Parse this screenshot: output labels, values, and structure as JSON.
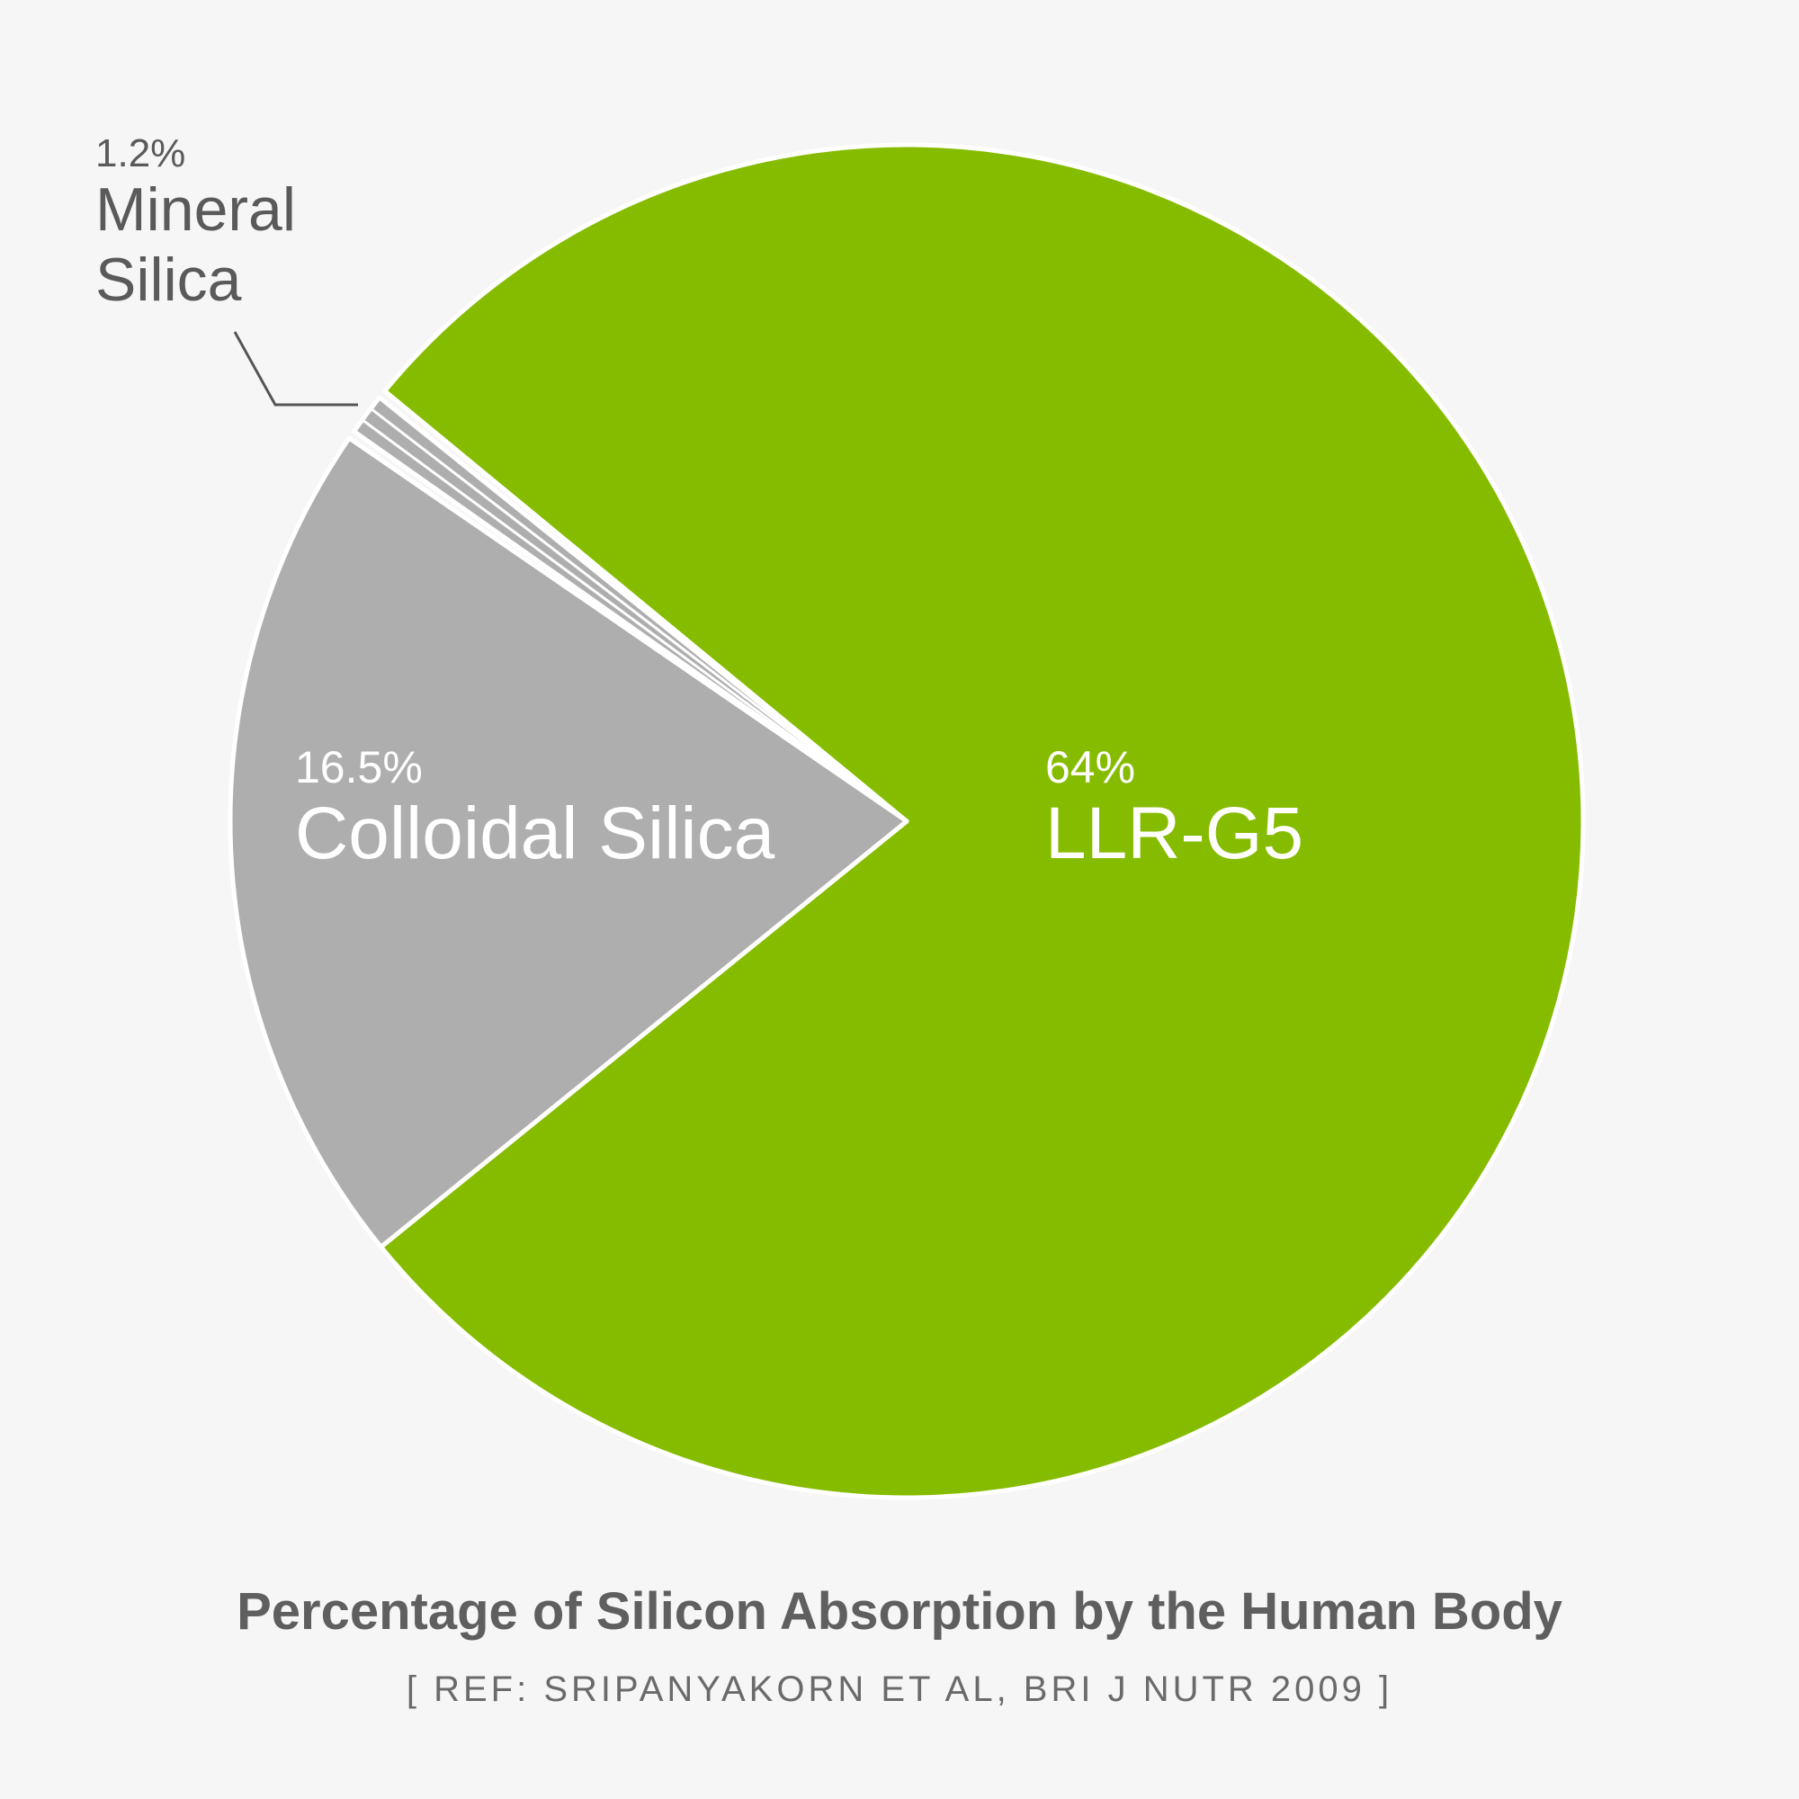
{
  "chart_data": {
    "type": "pie",
    "title": "Percentage of Silicon Absorption by the Human Body",
    "subtitle": "[ REF: SRIPANYAKORN ET AL, BRI J NUTR 2009 ]",
    "series": [
      {
        "name": "LLR-G5",
        "value": 64,
        "percent_label": "64%",
        "label": "LLR-G5",
        "color": "#86bc00"
      },
      {
        "name": "Colloidal Silica",
        "value": 16.5,
        "percent_label": "16.5%",
        "label": "Colloidal Silica",
        "color": "#afaeae"
      },
      {
        "name": "Mineral Silica",
        "value": 1.2,
        "percent_label": "1.2%",
        "label_lines": [
          "Mineral",
          "Silica"
        ],
        "color": "#afaeae"
      }
    ]
  }
}
